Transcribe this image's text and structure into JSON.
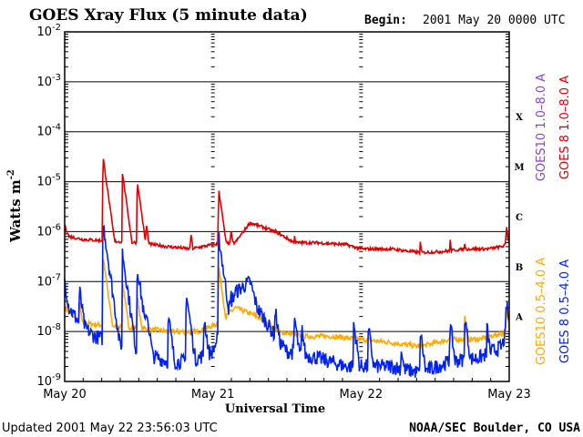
{
  "chart_data": {
    "type": "line",
    "title": "GOES Xray Flux (5 minute data)",
    "begin_label": "Begin:",
    "begin_value": "2001 May 20 0000 UTC",
    "ylabel": "Watts m",
    "ylabel_sup": "-2",
    "xlabel": "Universal Time",
    "yscale": "log",
    "ylim": [
      1e-09,
      0.01
    ],
    "grid": true,
    "y_ticks": [
      {
        "exp": "-2",
        "value": 0.01
      },
      {
        "exp": "-3",
        "value": 0.001
      },
      {
        "exp": "-4",
        "value": 0.0001
      },
      {
        "exp": "-5",
        "value": 1e-05
      },
      {
        "exp": "-6",
        "value": 1e-06
      },
      {
        "exp": "-7",
        "value": 1e-07
      },
      {
        "exp": "-8",
        "value": 1e-08
      },
      {
        "exp": "-9",
        "value": 1e-09
      }
    ],
    "y_tick_base": "10",
    "flare_classes": [
      {
        "label": "X",
        "value": 0.0002
      },
      {
        "label": "M",
        "value": 2e-05
      },
      {
        "label": "C",
        "value": 2e-06
      },
      {
        "label": "B",
        "value": 2e-07
      },
      {
        "label": "A",
        "value": 2e-08
      }
    ],
    "xlim": [
      0,
      3
    ],
    "x_ticks": [
      {
        "label": "May 20",
        "value": 0
      },
      {
        "label": "May 21",
        "value": 1
      },
      {
        "label": "May 22",
        "value": 2
      },
      {
        "label": "May 23",
        "value": 3
      }
    ],
    "x_unit": "days since 2001 May 20 0000 UTC",
    "series": [
      {
        "name": "GOES 8 1.0-8.0 A",
        "color": "#dd0000",
        "baseline": [
          [
            0,
            1.3e-06
          ],
          [
            0.03,
            8e-07
          ],
          [
            0.12,
            7e-07
          ],
          [
            0.3,
            6.5e-07
          ],
          [
            0.5,
            6e-07
          ],
          [
            0.7,
            5e-07
          ],
          [
            0.85,
            4.5e-07
          ],
          [
            1.0,
            5.5e-07
          ],
          [
            1.15,
            6e-07
          ],
          [
            1.25,
            1.5e-06
          ],
          [
            1.35,
            1.2e-06
          ],
          [
            1.45,
            9e-07
          ],
          [
            1.55,
            6e-07
          ],
          [
            1.7,
            6e-07
          ],
          [
            1.9,
            5.5e-07
          ],
          [
            2.0,
            4.5e-07
          ],
          [
            2.2,
            4.5e-07
          ],
          [
            2.4,
            3.8e-07
          ],
          [
            2.55,
            4e-07
          ],
          [
            2.7,
            4.5e-07
          ],
          [
            2.85,
            4.5e-07
          ],
          [
            2.95,
            5e-07
          ],
          [
            3.0,
            6e-07
          ]
        ],
        "peaks": [
          [
            0.26,
            3e-05
          ],
          [
            0.39,
            1.5e-05
          ],
          [
            0.49,
            1e-05
          ],
          [
            0.55,
            1.5e-06
          ],
          [
            0.85,
            1e-06
          ],
          [
            1.04,
            7e-06
          ],
          [
            1.12,
            1.2e-06
          ],
          [
            1.42,
            1.2e-06
          ],
          [
            1.55,
            9e-07
          ],
          [
            2.4,
            6e-07
          ],
          [
            2.6,
            7e-07
          ],
          [
            2.7,
            6e-07
          ],
          [
            2.98,
            1.4e-06
          ]
        ],
        "noise": 0.06
      },
      {
        "name": "GOES10 1.0-8.0 A",
        "color": "#8844cc",
        "baseline": [],
        "peaks": [],
        "noise": 0
      },
      {
        "name": "GOES 8 0.5-4.0 A",
        "color": "#0022ee",
        "baseline": [
          [
            0,
            1e-07
          ],
          [
            0.03,
            3e-08
          ],
          [
            0.1,
            1.5e-08
          ],
          [
            0.2,
            8e-09
          ],
          [
            0.35,
            6e-09
          ],
          [
            0.5,
            4e-09
          ],
          [
            0.7,
            2.5e-09
          ],
          [
            0.85,
            2.5e-09
          ],
          [
            1.0,
            4e-09
          ],
          [
            1.15,
            6e-08
          ],
          [
            1.25,
            1e-07
          ],
          [
            1.3,
            3e-08
          ],
          [
            1.4,
            1e-08
          ],
          [
            1.5,
            4e-09
          ],
          [
            1.7,
            3e-09
          ],
          [
            1.9,
            2e-09
          ],
          [
            2.0,
            2e-09
          ],
          [
            2.2,
            2e-09
          ],
          [
            2.4,
            1.5e-09
          ],
          [
            2.6,
            2.5e-09
          ],
          [
            2.8,
            3e-09
          ],
          [
            2.95,
            5e-09
          ],
          [
            3.0,
            1.5e-08
          ]
        ],
        "peaks": [
          [
            0.1,
            7e-08
          ],
          [
            0.26,
            1.5e-06
          ],
          [
            0.39,
            4e-07
          ],
          [
            0.49,
            2e-07
          ],
          [
            0.55,
            3e-08
          ],
          [
            0.7,
            2e-08
          ],
          [
            0.82,
            6e-08
          ],
          [
            0.94,
            2e-08
          ],
          [
            1.04,
            8e-07
          ],
          [
            1.12,
            6e-08
          ],
          [
            1.42,
            3e-08
          ],
          [
            1.55,
            2e-08
          ],
          [
            1.6,
            1.2e-08
          ],
          [
            1.95,
            1.5e-08
          ],
          [
            2.05,
            1.2e-08
          ],
          [
            2.27,
            5e-09
          ],
          [
            2.4,
            1e-08
          ],
          [
            2.6,
            1.5e-08
          ],
          [
            2.7,
            2e-08
          ],
          [
            2.85,
            1.2e-08
          ],
          [
            2.98,
            4e-08
          ]
        ],
        "noise": 0.3
      },
      {
        "name": "GOES10 0.5-4.0 A",
        "color": "#ffaa00",
        "baseline": [
          [
            0,
            3e-08
          ],
          [
            0.1,
            1.5e-08
          ],
          [
            0.3,
            1.3e-08
          ],
          [
            0.5,
            1.2e-08
          ],
          [
            0.7,
            1e-08
          ],
          [
            0.9,
            1e-08
          ],
          [
            1.05,
            1.5e-08
          ],
          [
            1.15,
            3e-08
          ],
          [
            1.3,
            2e-08
          ],
          [
            1.45,
            1e-08
          ],
          [
            1.6,
            8e-09
          ],
          [
            1.8,
            8e-09
          ],
          [
            2.0,
            7e-09
          ],
          [
            2.2,
            6e-09
          ],
          [
            2.4,
            5e-09
          ],
          [
            2.6,
            7e-09
          ],
          [
            2.8,
            7e-09
          ],
          [
            3.0,
            1e-08
          ]
        ],
        "peaks": [
          [
            0.1,
            4e-08
          ],
          [
            0.26,
            3e-07
          ],
          [
            0.39,
            1e-07
          ],
          [
            0.49,
            5e-08
          ],
          [
            1.04,
            2e-07
          ],
          [
            1.12,
            3e-08
          ],
          [
            2.6,
            1.5e-08
          ],
          [
            2.7,
            2e-08
          ],
          [
            2.98,
            3e-08
          ]
        ],
        "noise": 0.1
      }
    ],
    "right_legend_left": [
      {
        "text": "GOES10 1.0–8.0 A",
        "color": "#8844cc"
      },
      {
        "text": "GOES10 0.5–4.0 A",
        "color": "#ffaa00"
      }
    ],
    "right_legend_right": [
      {
        "text": "GOES 8 1.0–8.0 A",
        "color": "#dd0000"
      },
      {
        "text": "GOES 8 0.5–4.0 A",
        "color": "#0022ee"
      }
    ],
    "footer_left": "Updated 2001 May 22 23:56:03 UTC",
    "footer_right": "NOAA/SEC Boulder, CO USA"
  }
}
